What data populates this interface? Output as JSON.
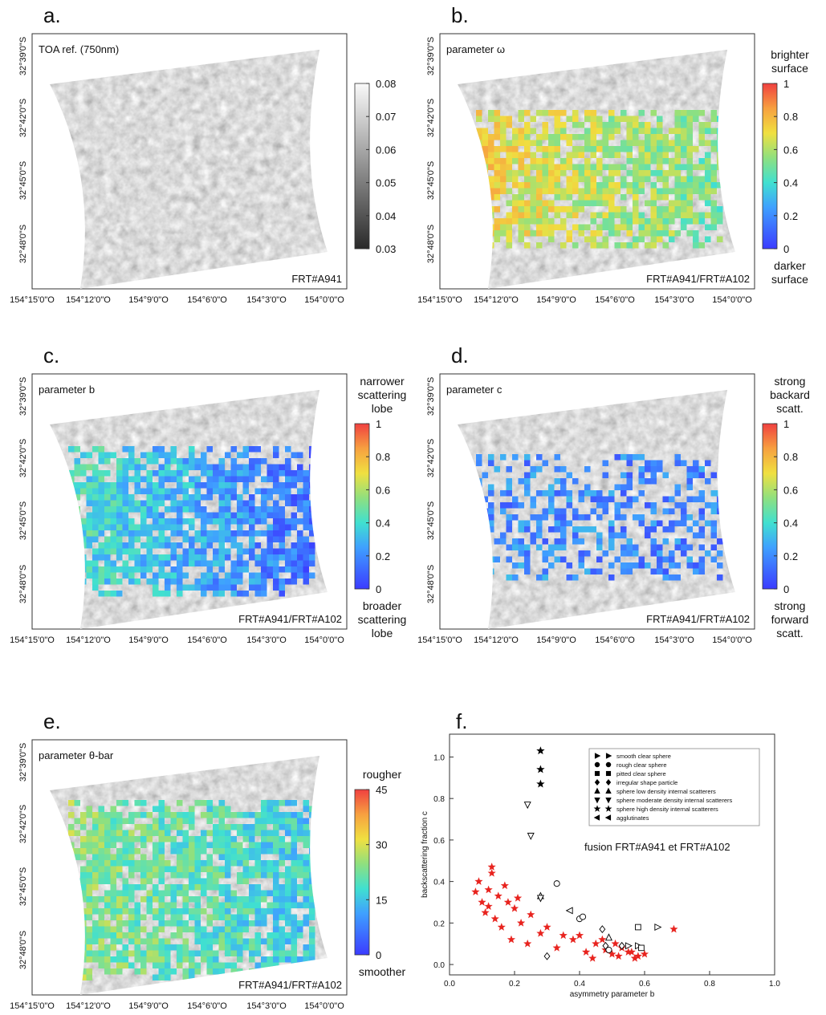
{
  "lat_labels": [
    "32°39'0\"S",
    "32°42'0\"S",
    "32°45'0\"S",
    "32°48'0\"S"
  ],
  "lon_labels": [
    "154°15'0\"O",
    "154°12'0\"O",
    "154°9'0\"O",
    "154°6'0\"O",
    "154°3'0\"O",
    "154°0'0\"O"
  ],
  "panels": [
    {
      "letter": "a.",
      "title": "TOA ref. (750nm)",
      "footer": "FRT#A941",
      "colorbar": {
        "colormap": "gray",
        "range": [
          0.03,
          0.08
        ],
        "ticks": [
          0.03,
          0.04,
          0.05,
          0.06,
          0.07,
          0.08
        ],
        "top_label": [],
        "bottom_label": []
      }
    },
    {
      "letter": "b.",
      "title": "parameter ω",
      "footer": "FRT#A941/FRT#A102",
      "colorbar": {
        "colormap": "jet",
        "range": [
          0,
          1
        ],
        "ticks": [
          0,
          0.2,
          0.4,
          0.6,
          0.8,
          1
        ],
        "top_label": [
          "brighter",
          "surface"
        ],
        "bottom_label": [
          "darker",
          "surface"
        ]
      }
    },
    {
      "letter": "c.",
      "title": "parameter b",
      "footer": "FRT#A941/FRT#A102",
      "colorbar": {
        "colormap": "jet",
        "range": [
          0,
          1
        ],
        "ticks": [
          0,
          0.2,
          0.4,
          0.6,
          0.8,
          1
        ],
        "top_label": [
          "narrower",
          "scattering",
          "lobe"
        ],
        "bottom_label": [
          "broader",
          "scattering",
          "lobe"
        ]
      }
    },
    {
      "letter": "d.",
      "title": "parameter c",
      "footer": "FRT#A941/FRT#A102",
      "colorbar": {
        "colormap": "jet",
        "range": [
          0,
          1
        ],
        "ticks": [
          0,
          0.2,
          0.4,
          0.6,
          0.8,
          1
        ],
        "top_label": [
          "strong",
          "backard",
          "scatt."
        ],
        "bottom_label": [
          "strong",
          "forward",
          "scatt."
        ]
      }
    },
    {
      "letter": "e.",
      "title": "parameter θ-bar",
      "footer": "FRT#A941/FRT#A102",
      "colorbar": {
        "colormap": "jet",
        "range": [
          0,
          45
        ],
        "ticks": [
          0,
          15,
          30,
          45
        ],
        "top_label": [
          "rougher"
        ],
        "bottom_label": [
          "smoother"
        ]
      }
    }
  ],
  "panel_f_letter": "f.",
  "chart_data": {
    "type": "scatter",
    "xlabel": "asymmetry parameter b",
    "ylabel": "backscattering fraction c",
    "xlim": [
      0,
      1
    ],
    "ylim": [
      -0.05,
      1.11
    ],
    "xticks": [
      {
        "value": 0,
        "label": "0.0"
      },
      {
        "value": 0.2,
        "label": "0.2"
      },
      {
        "value": 0.4,
        "label": "0.4"
      },
      {
        "value": 0.6,
        "label": "0.6"
      },
      {
        "value": 0.8,
        "label": "0.8"
      },
      {
        "value": 1,
        "label": "1.0"
      }
    ],
    "yticks": [
      {
        "value": 0,
        "label": "0.0"
      },
      {
        "value": 0.2,
        "label": "0.2"
      },
      {
        "value": 0.4,
        "label": "0.4"
      },
      {
        "value": 0.6,
        "label": "0.6"
      },
      {
        "value": 0.8,
        "label": "0.8"
      },
      {
        "value": 1,
        "label": "1.0"
      }
    ],
    "legend": "upper right",
    "series": [
      {
        "name": "fusion FRT#A941 et FRT#A102",
        "color": "#e8231e",
        "marker": "star",
        "x": [
          0.08,
          0.1,
          0.12,
          0.13,
          0.15,
          0.11,
          0.14,
          0.18,
          0.2,
          0.22,
          0.09,
          0.16,
          0.12,
          0.25,
          0.28,
          0.19,
          0.13,
          0.17,
          0.21,
          0.24,
          0.3,
          0.35,
          0.33,
          0.38,
          0.42,
          0.45,
          0.48,
          0.5,
          0.52,
          0.55,
          0.57,
          0.6,
          0.47,
          0.53,
          0.58,
          0.44,
          0.51,
          0.56,
          0.69,
          0.4
        ],
        "values": [
          0.35,
          0.3,
          0.28,
          0.47,
          0.33,
          0.25,
          0.22,
          0.3,
          0.27,
          0.2,
          0.4,
          0.18,
          0.36,
          0.24,
          0.15,
          0.12,
          0.44,
          0.38,
          0.32,
          0.1,
          0.18,
          0.14,
          0.08,
          0.12,
          0.06,
          0.1,
          0.07,
          0.05,
          0.04,
          0.06,
          0.03,
          0.05,
          0.12,
          0.08,
          0.04,
          0.03,
          0.1,
          0.06,
          0.17,
          0.14
        ]
      },
      {
        "name": "smooth clear sphere",
        "color": "#000000",
        "marker": "triangle-right",
        "x": [
          0.64,
          0.55,
          0.58
        ],
        "values": [
          0.18,
          0.09,
          0.09
        ]
      },
      {
        "name": "rough clear sphere",
        "color": "#000000",
        "marker": "circle",
        "x": [
          0.33,
          0.4,
          0.41,
          0.49
        ],
        "values": [
          0.39,
          0.22,
          0.23,
          0.07
        ]
      },
      {
        "name": "pitted clear sphere",
        "color": "#000000",
        "marker": "square",
        "x": [
          0.58,
          0.59
        ],
        "values": [
          0.18,
          0.08
        ]
      },
      {
        "name": "irregular shape particle",
        "color": "#000000",
        "marker": "diamond",
        "x": [
          0.3,
          0.47,
          0.48,
          0.53
        ],
        "values": [
          0.04,
          0.17,
          0.09,
          0.09
        ]
      },
      {
        "name": "sphere low density internal scatterers",
        "color": "#000000",
        "marker": "triangle-up",
        "x": [
          0.49,
          0.28
        ],
        "values": [
          0.13,
          0.33
        ]
      },
      {
        "name": "sphere moderate density internal scatterers",
        "color": "#000000",
        "marker": "triangle-down",
        "x": [
          0.24,
          0.25,
          0.28
        ],
        "values": [
          0.77,
          0.62,
          0.32
        ]
      },
      {
        "name": "sphere high density internal scatterers",
        "color": "#000000",
        "marker": "star",
        "x": [
          0.28,
          0.28,
          0.28
        ],
        "values": [
          1.03,
          0.94,
          0.87
        ]
      },
      {
        "name": "agglutinates",
        "color": "#000000",
        "marker": "triangle-left",
        "x": [
          0.37
        ],
        "values": [
          0.26
        ]
      }
    ]
  }
}
